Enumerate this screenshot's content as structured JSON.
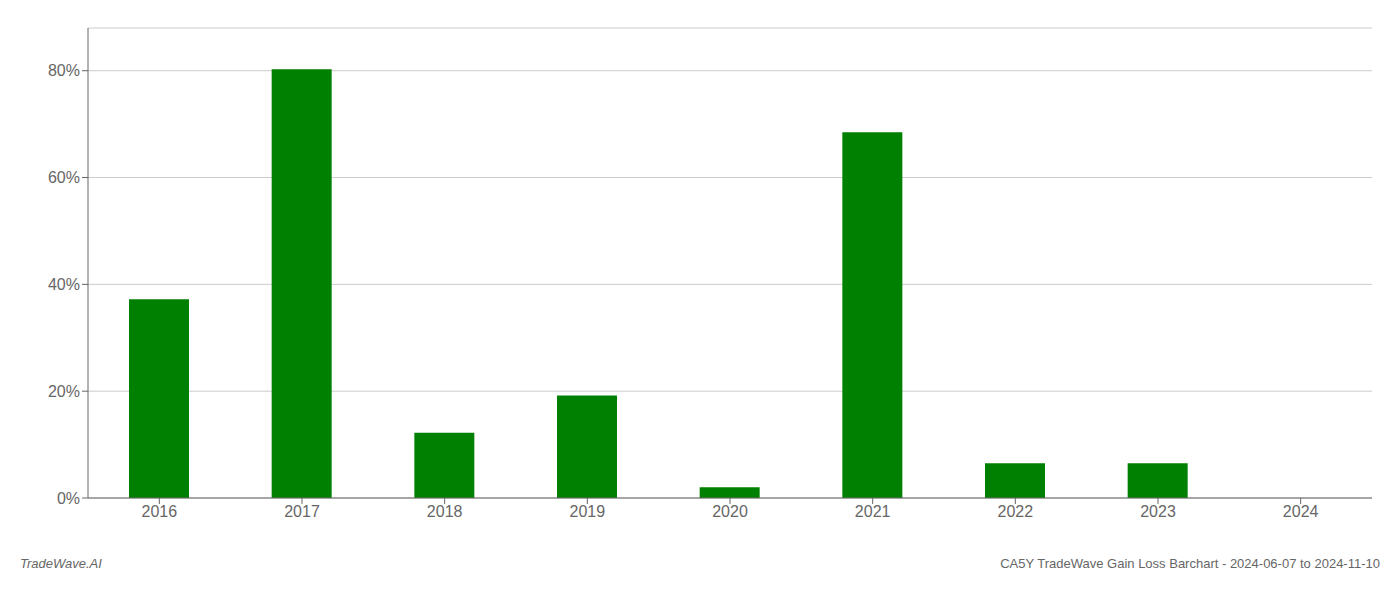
{
  "chart_data": {
    "type": "bar",
    "categories": [
      "2016",
      "2017",
      "2018",
      "2019",
      "2020",
      "2021",
      "2022",
      "2023",
      "2024"
    ],
    "values": [
      37.2,
      80.3,
      12.2,
      19.2,
      2.0,
      68.5,
      6.5,
      6.5,
      0.0
    ],
    "color": "#008000",
    "ylim": [
      0,
      88
    ],
    "yticks": [
      {
        "value": 0,
        "label": "0%"
      },
      {
        "value": 20,
        "label": "20%"
      },
      {
        "value": 40,
        "label": "40%"
      },
      {
        "value": 60,
        "label": "60%"
      },
      {
        "value": 80,
        "label": "80%"
      }
    ],
    "grid": true,
    "annotations": [
      "TradeWave.AI",
      "CA5Y TradeWave Gain Loss Barchart - 2024-06-07 to 2024-11-10"
    ]
  }
}
